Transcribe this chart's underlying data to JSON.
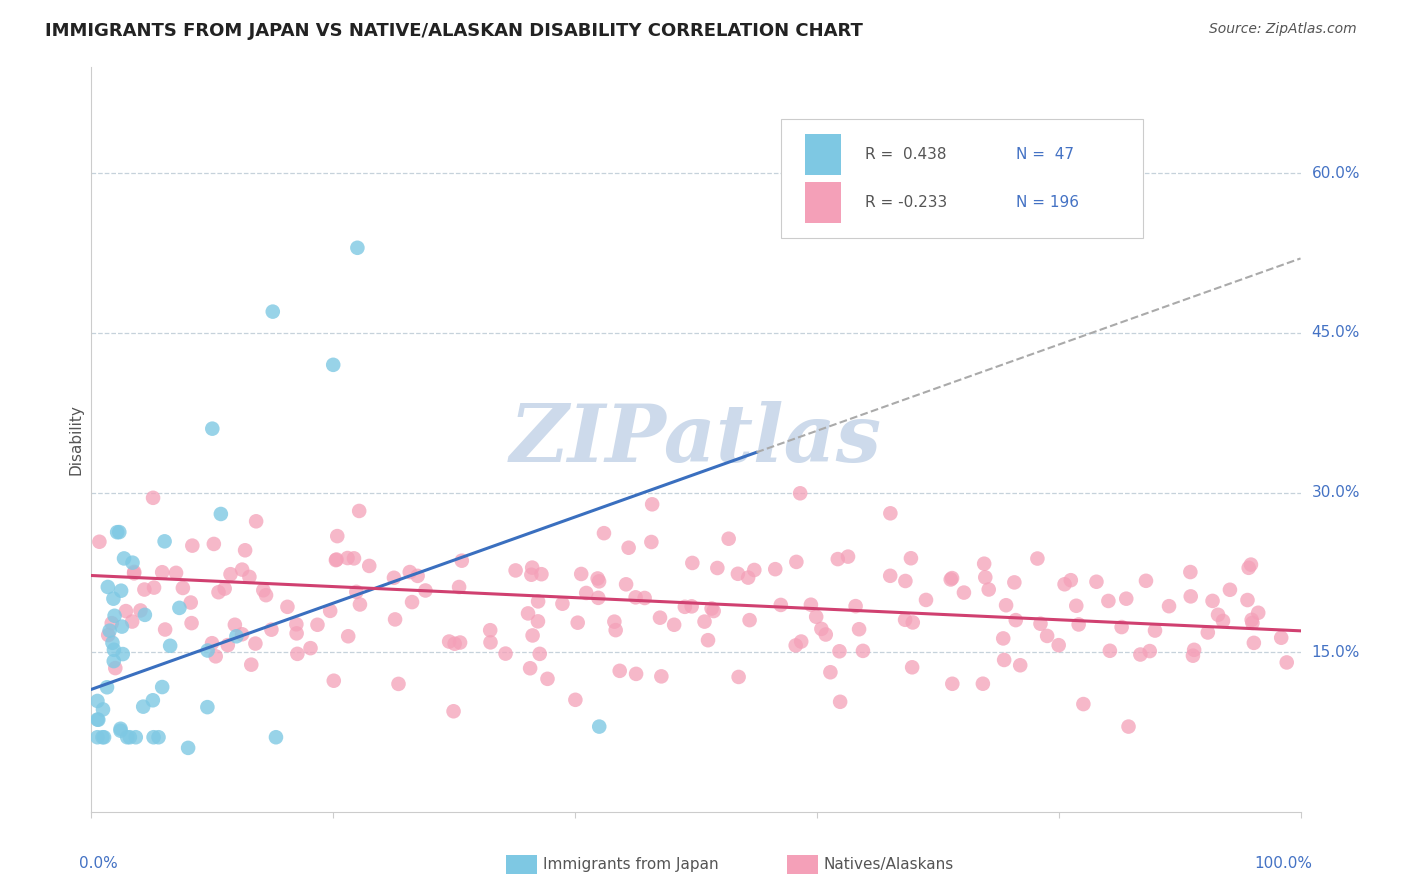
{
  "title": "IMMIGRANTS FROM JAPAN VS NATIVE/ALASKAN DISABILITY CORRELATION CHART",
  "source": "Source: ZipAtlas.com",
  "ylabel": "Disability",
  "xlim": [
    0.0,
    1.0
  ],
  "ylim": [
    0.0,
    0.7
  ],
  "ytick_positions": [
    0.15,
    0.3,
    0.45,
    0.6
  ],
  "ytick_labels": [
    "15.0%",
    "30.0%",
    "45.0%",
    "60.0%"
  ],
  "background_color": "#ffffff",
  "title_fontsize": 13,
  "blue_color": "#7ec8e3",
  "pink_color": "#f4a0b8",
  "blue_line_color": "#3a6fbf",
  "pink_line_color": "#d04070",
  "dashed_line_color": "#c0cdd8",
  "watermark": "ZIPatlas",
  "watermark_color": "#cddaeb",
  "blue_R": 0.438,
  "blue_N": 47,
  "pink_R": -0.233,
  "pink_N": 196,
  "legend_R1": "R =  0.438",
  "legend_N1": "N =  47",
  "legend_R2": "R = -0.233",
  "legend_N2": "N = 196",
  "label_color": "#4472c4",
  "text_color": "#555555"
}
